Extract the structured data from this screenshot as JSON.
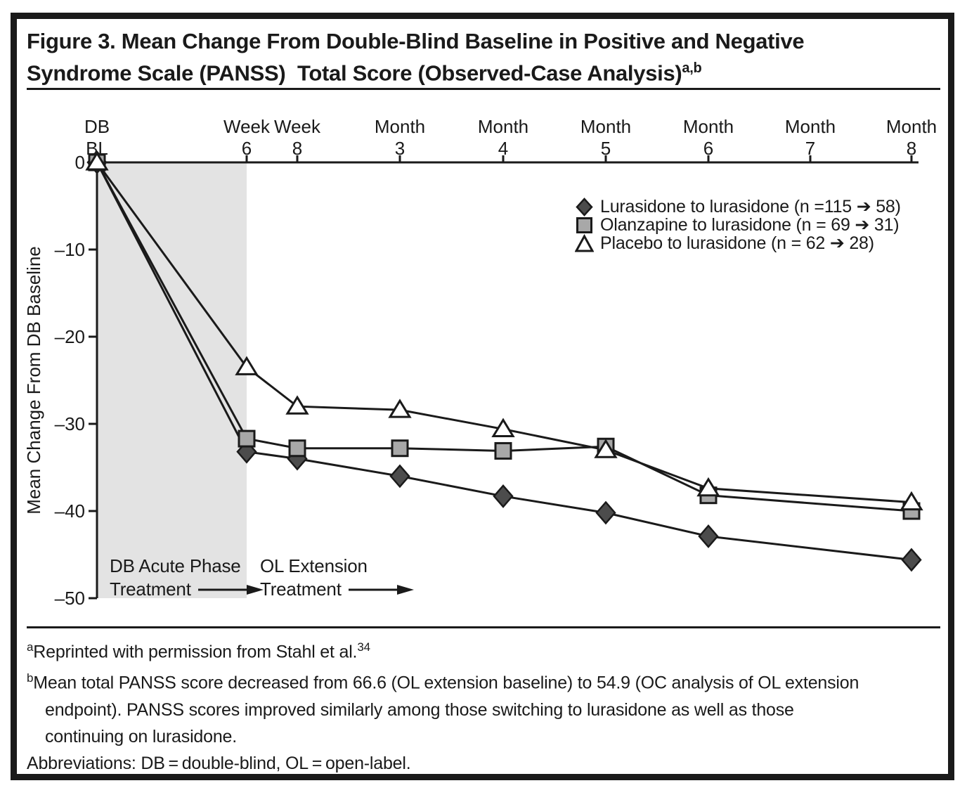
{
  "figure": {
    "title_line1": "Figure 3. Mean Change From Double-Blind Baseline in Positive and Negative",
    "title_line2": "Syndrome Scale (PANSS)  Total Score (Observed-Case Analysis)",
    "title_superscript": "a,b"
  },
  "chart_data": {
    "type": "line",
    "categories": [
      "DB BL",
      "Week 6",
      "Week 8",
      "Month 3",
      "Month 4",
      "Month 5",
      "Month 6",
      "Month 7",
      "Month 8"
    ],
    "x_axis": {
      "tick_top_labels": [
        "DB",
        "Week",
        "Week",
        "Month",
        "Month",
        "Month",
        "Month",
        "Month",
        "Month"
      ],
      "tick_bottom_labels": [
        "BL",
        "6",
        "8",
        "3",
        "4",
        "5",
        "6",
        "7",
        "8"
      ]
    },
    "y_axis": {
      "label": "Mean Change From DB Baseline",
      "ticks": [
        0,
        -10,
        -20,
        -30,
        -40,
        -50
      ],
      "tick_labels": [
        "0",
        "–10",
        "–20",
        "–30",
        "–40",
        "–50"
      ]
    },
    "ylim": [
      -50,
      0
    ],
    "series": [
      {
        "name": "lurasidone-to-lurasidone",
        "marker": "diamond",
        "marker_fill": "#4c4c4c",
        "legend_label": "Lurasidone to lurasidone (n =115 ➔ 58)",
        "values": [
          0,
          -33.2,
          -34.0,
          -36.0,
          -38.3,
          -40.2,
          -42.9,
          null,
          -45.6
        ]
      },
      {
        "name": "olanzapine-to-lurasidone",
        "marker": "square",
        "marker_fill": "#a8a8a8",
        "legend_label": "Olanzapine to lurasidone (n = 69 ➔ 31)",
        "values": [
          0,
          -31.7,
          -32.8,
          -32.8,
          -33.1,
          -32.6,
          -38.2,
          null,
          -40.0
        ]
      },
      {
        "name": "placebo-to-lurasidone",
        "marker": "triangle",
        "marker_fill": "#ffffff",
        "legend_label": "Placebo to lurasidone (n = 62 ➔ 28)",
        "values": [
          0,
          -23.5,
          -28.0,
          -28.4,
          -30.6,
          -33.0,
          -37.4,
          null,
          -39.0
        ]
      }
    ],
    "shaded_region": {
      "from_index": 0,
      "to_index": 1,
      "color": "#e3e3e3"
    },
    "line_color": "#1a1a1a",
    "legend_position": "upper right",
    "grid": false,
    "annotations": {
      "phase1_line1": "DB Acute Phase",
      "phase1_line2": "Treatment",
      "phase2_line1": "OL Extension",
      "phase2_line2": "Treatment"
    }
  },
  "footnotes": {
    "a_marker": "a",
    "a_text": "Reprinted with permission from Stahl et al.",
    "a_ref": "34",
    "b_marker": "b",
    "b_line1": "Mean total PANSS score decreased from 66.6 (OL extension baseline) to 54.9 (OC analysis of OL extension",
    "b_line2": "endpoint). PANSS scores improved similarly among those switching to lurasidone as well as those",
    "b_line3": "continuing on lurasidone.",
    "abbreviations": "Abbreviations: DB = double-blind, OL = open-label."
  }
}
